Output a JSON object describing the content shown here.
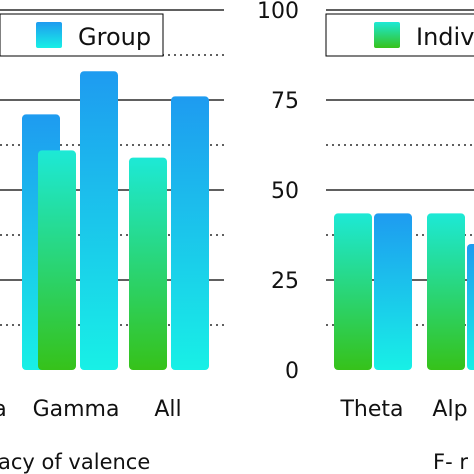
{
  "chart_data": [
    {
      "type": "bar",
      "title": "",
      "xlabel": "acy of valence",
      "ylabel": "",
      "categories": [
        "a",
        "Gamma",
        "All"
      ],
      "series": [
        {
          "name": "",
          "values": [
            null,
            61,
            59
          ]
        },
        {
          "name": "Group",
          "values": [
            71,
            83,
            76
          ]
        }
      ],
      "legend": {
        "entries": [
          "Group"
        ],
        "placement": "top"
      },
      "ylim": [
        0,
        100
      ],
      "grid": "horizontal solid and dotted lines"
    },
    {
      "type": "bar",
      "title": "",
      "xlabel": "F- r",
      "ylabel": "",
      "categories": [
        "Theta",
        "Alp"
      ],
      "yticks": [
        0,
        25,
        50,
        75,
        100
      ],
      "series": [
        {
          "name": "Indiv",
          "values": [
            43.5,
            43.5
          ]
        },
        {
          "name": "",
          "values": [
            43.5,
            35
          ]
        }
      ],
      "legend": {
        "entries": [
          "Indiv"
        ],
        "placement": "top"
      },
      "ylim": [
        0,
        100
      ],
      "grid": "horizontal solid and dotted lines"
    }
  ],
  "colors": {
    "green_gradient_top": "#1de9d6",
    "green_gradient_bottom": "#36c21a",
    "blue_gradient_top": "#1e9bf0",
    "blue_gradient_bottom": "#18f0e6",
    "grid": "#000000",
    "text": "#111111"
  }
}
